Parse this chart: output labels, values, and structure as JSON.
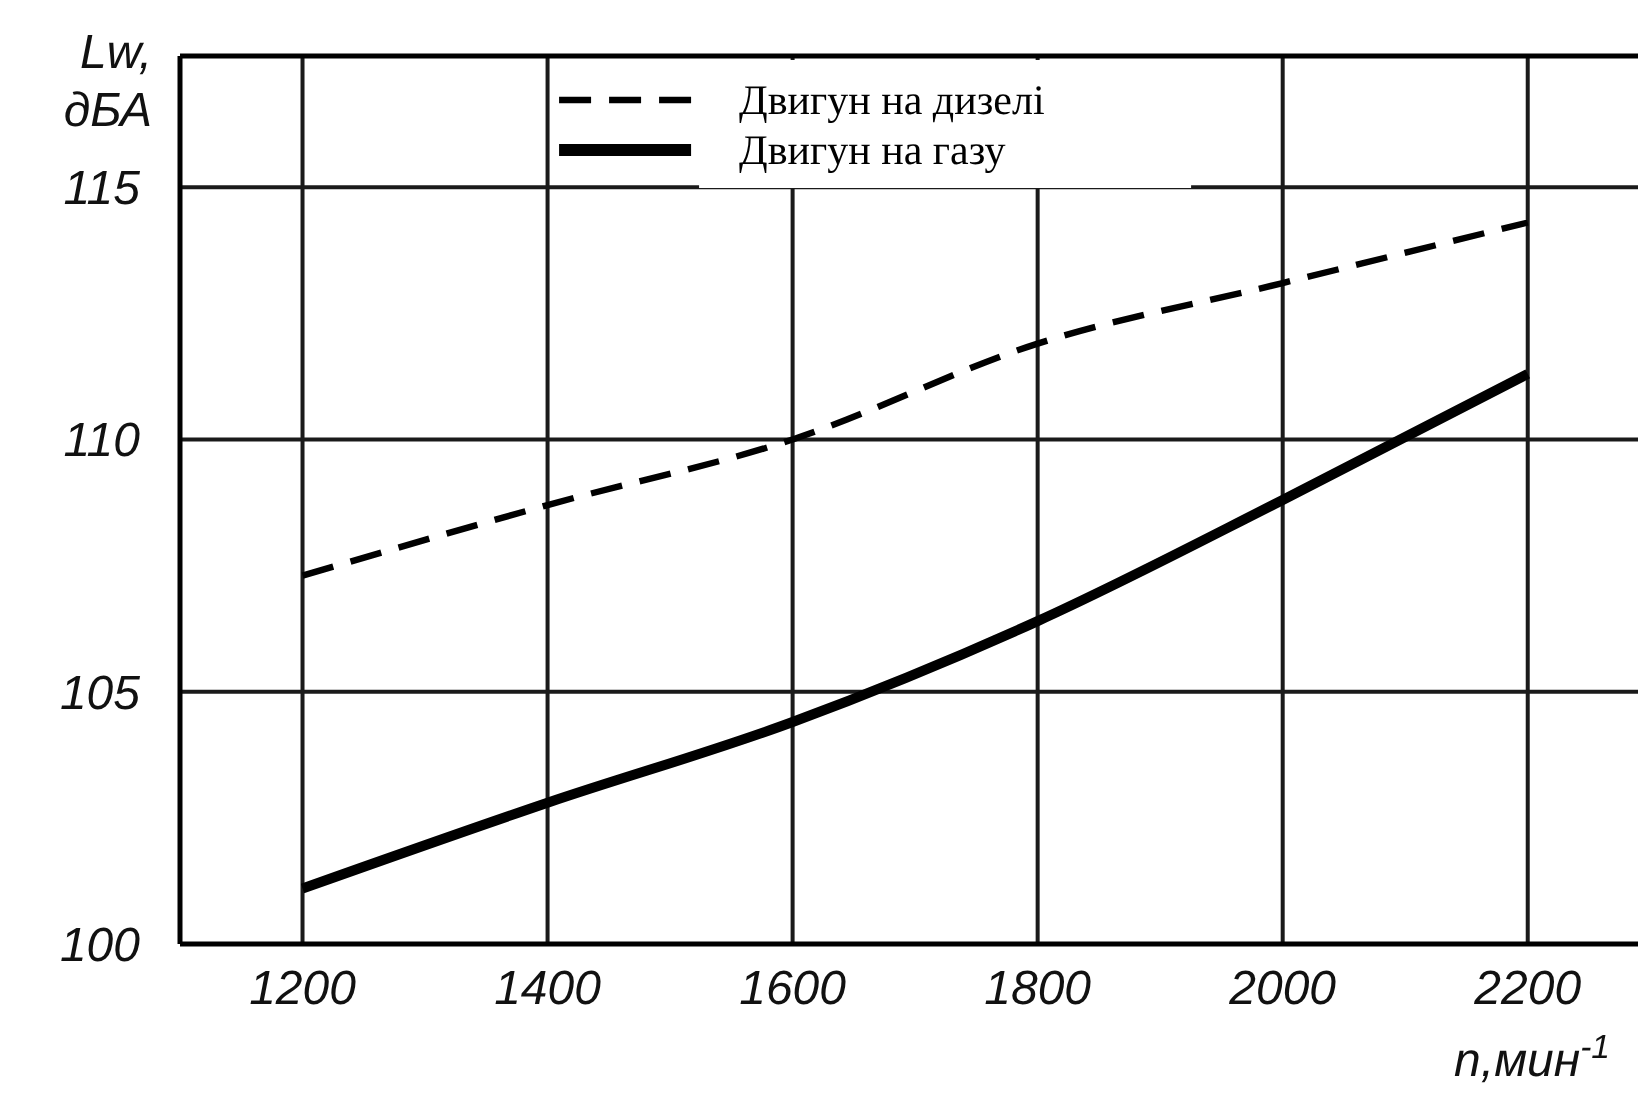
{
  "chart_data": {
    "type": "line",
    "xlabel": "n,мин$^{-1}$",
    "ylabel": "Lw,\nдБА",
    "x": [
      1200,
      1400,
      1600,
      1800,
      2000,
      2200
    ],
    "series": [
      {
        "name": "Двигун на дизелі",
        "color": "#000000",
        "line_style": "dashed",
        "values": [
          107.3,
          108.7,
          110.0,
          111.9,
          113.1,
          114.3
        ]
      },
      {
        "name": "Двигун на газу",
        "color": "#000000",
        "line_style": "solid",
        "values": [
          101.1,
          102.8,
          104.4,
          106.4,
          108.8,
          111.3
        ]
      }
    ],
    "xlim": [
      1100,
      2290
    ],
    "ylim": [
      100,
      117.6
    ],
    "xticks": [
      1200,
      1400,
      1600,
      1800,
      2000,
      2200
    ],
    "yticks": [
      100,
      105,
      110,
      115
    ],
    "grid": true,
    "legend": "top"
  }
}
